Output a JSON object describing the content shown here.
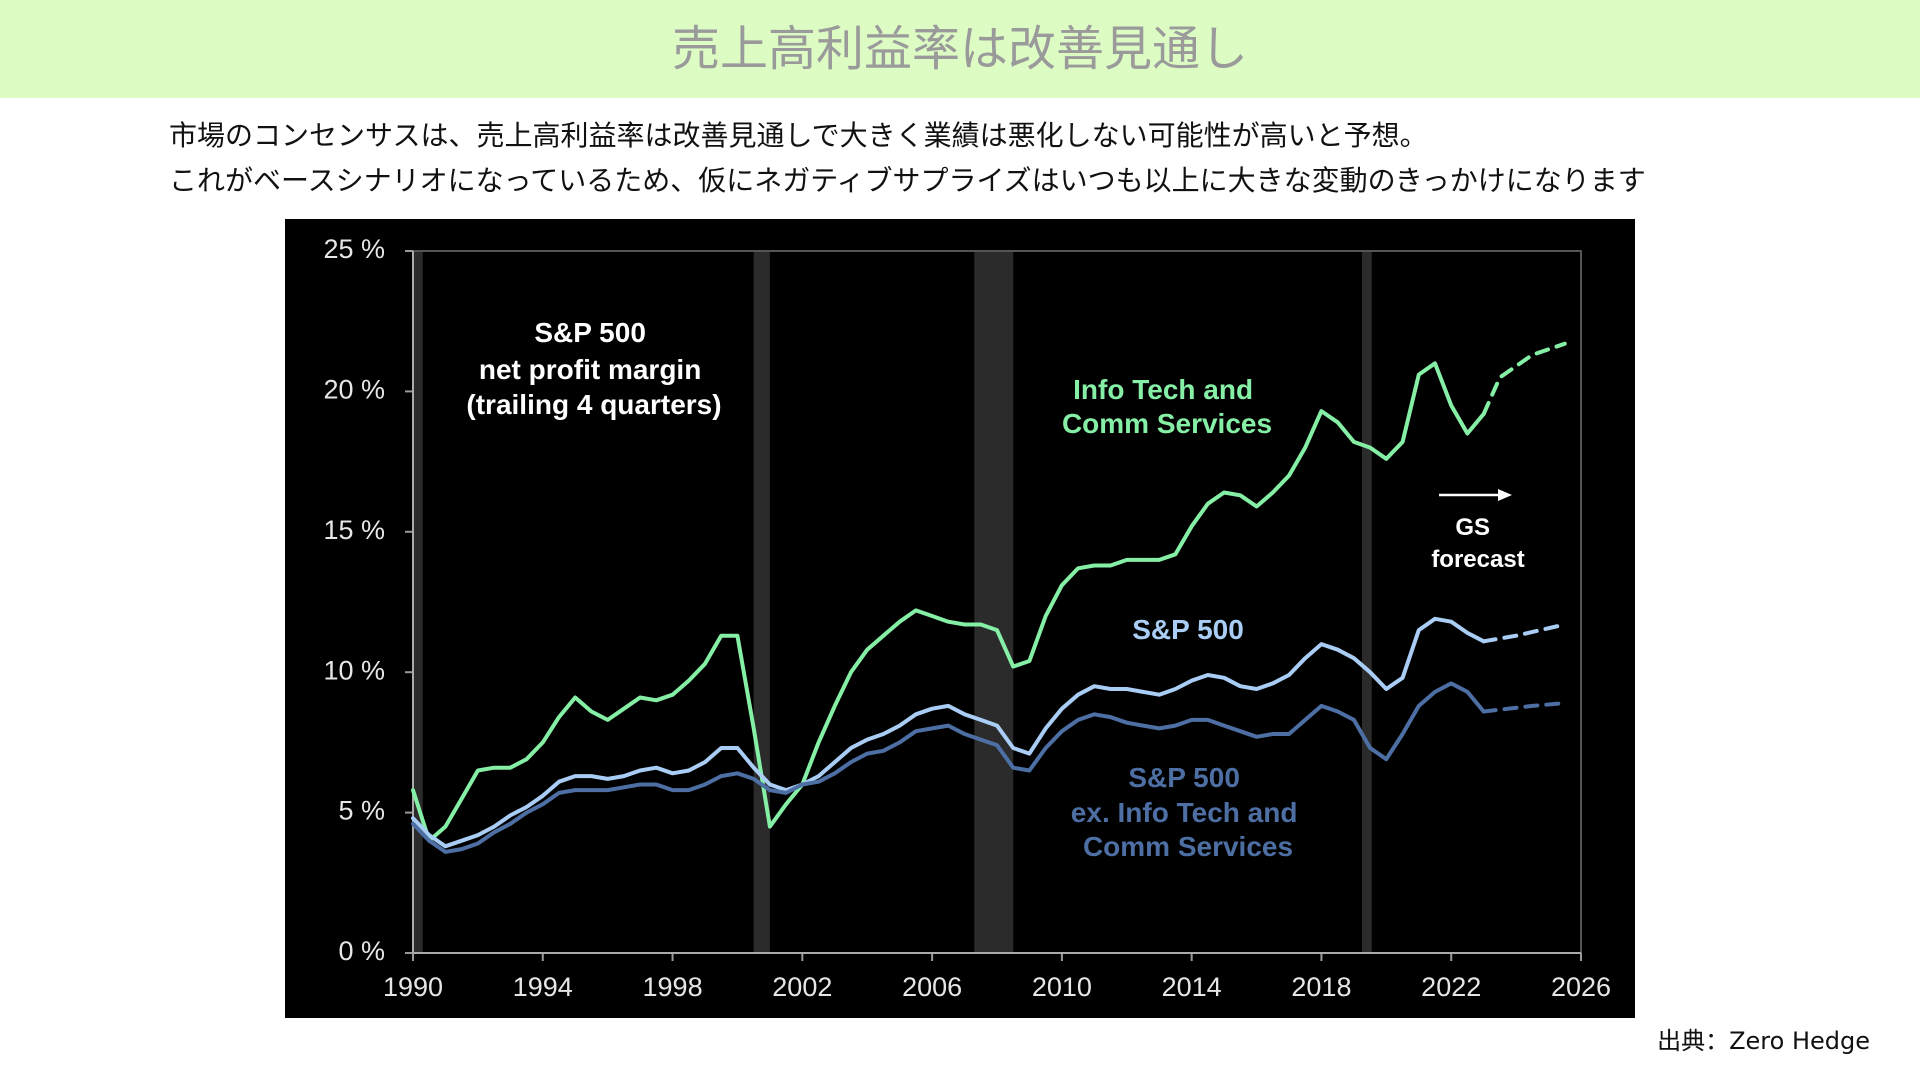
{
  "header": {
    "title": "売上高利益率は改善見通し"
  },
  "description": [
    "市場のコンセンサスは、売上高利益率は改善見通しで大きく業績は悪化しない可能性が高いと予想。",
    "これがベースシナリオになっているため、仮にネガティブサプライズはいつも以上に大きな変動のきっかけになります"
  ],
  "source": "出典：Zero Hedge",
  "chart_data": {
    "type": "line",
    "title": [
      "S&P 500",
      "net profit margin",
      "(trailing 4 quarters)"
    ],
    "annotation": [
      "GS",
      "forecast"
    ],
    "xlim": [
      1990,
      2026
    ],
    "xticks": [
      1990,
      1994,
      1998,
      2002,
      2006,
      2010,
      2014,
      2018,
      2022,
      2026
    ],
    "ylim": [
      0,
      25
    ],
    "yticks": [
      {
        "value": 0,
        "label": "0 %"
      },
      {
        "value": 5,
        "label": "5 %"
      },
      {
        "value": 10,
        "label": "10 %"
      },
      {
        "value": 15,
        "label": "15 %"
      },
      {
        "value": 20,
        "label": "20 %"
      },
      {
        "value": 25,
        "label": "25 %"
      }
    ],
    "recessions": [
      [
        1990.0,
        1990.3
      ],
      [
        2000.5,
        2001.0
      ],
      [
        2007.3,
        2008.5
      ],
      [
        2019.25,
        2019.55
      ]
    ],
    "x": [
      1990,
      1990.5,
      1991,
      1991.5,
      1992,
      1992.5,
      1993,
      1993.5,
      1994,
      1994.5,
      1995,
      1995.5,
      1996,
      1996.5,
      1997,
      1997.5,
      1998,
      1998.5,
      1999,
      1999.5,
      2000,
      2000.5,
      2001,
      2001.5,
      2002,
      2002.5,
      2003,
      2003.5,
      2004,
      2004.5,
      2005,
      2005.5,
      2006,
      2006.5,
      2007,
      2007.5,
      2008,
      2008.5,
      2009,
      2009.5,
      2010,
      2010.5,
      2011,
      2011.5,
      2012,
      2012.5,
      2013,
      2013.5,
      2014,
      2014.5,
      2015,
      2015.5,
      2016,
      2016.5,
      2017,
      2017.5,
      2018,
      2018.5,
      2019,
      2019.5,
      2020,
      2020.5,
      2021,
      2021.5,
      2022,
      2022.5,
      2023
    ],
    "series": [
      {
        "name": [
          "Info Tech and",
          "Comm Services"
        ],
        "color": "#86efa6",
        "values": [
          5.8,
          4.0,
          4.5,
          5.5,
          6.5,
          6.6,
          6.6,
          6.9,
          7.5,
          8.4,
          9.1,
          8.6,
          8.3,
          8.7,
          9.1,
          9.0,
          9.2,
          9.7,
          10.3,
          11.3,
          11.3,
          8.0,
          4.5,
          5.3,
          6.0,
          7.5,
          8.8,
          10.0,
          10.8,
          11.3,
          11.8,
          12.2,
          12.0,
          11.8,
          11.7,
          11.7,
          11.5,
          10.2,
          10.4,
          12.0,
          13.1,
          13.7,
          13.8,
          13.8,
          14.0,
          14.0,
          14.0,
          14.2,
          15.2,
          16.0,
          16.4,
          16.3,
          15.9,
          16.4,
          17.0,
          18.0,
          19.3,
          18.9,
          18.2,
          18.0,
          17.6,
          18.2,
          20.6,
          21.0,
          19.5,
          18.5,
          19.2
        ],
        "forecast": {
          "x": [
            2023,
            2023.5,
            2024.5,
            2025.5
          ],
          "values": [
            19.2,
            20.5,
            21.3,
            21.7
          ]
        }
      },
      {
        "name": [
          "S&P 500"
        ],
        "color": "#a9cdf5",
        "values": [
          4.8,
          4.2,
          3.8,
          4.0,
          4.2,
          4.5,
          4.9,
          5.2,
          5.6,
          6.1,
          6.3,
          6.3,
          6.2,
          6.3,
          6.5,
          6.6,
          6.4,
          6.5,
          6.8,
          7.3,
          7.3,
          6.6,
          6.0,
          5.8,
          6.0,
          6.3,
          6.8,
          7.3,
          7.6,
          7.8,
          8.1,
          8.5,
          8.7,
          8.8,
          8.5,
          8.3,
          8.1,
          7.3,
          7.1,
          8.0,
          8.7,
          9.2,
          9.5,
          9.4,
          9.4,
          9.3,
          9.2,
          9.4,
          9.7,
          9.9,
          9.8,
          9.5,
          9.4,
          9.6,
          9.9,
          10.5,
          11.0,
          10.8,
          10.5,
          10.0,
          9.4,
          9.8,
          11.5,
          11.9,
          11.8,
          11.4,
          11.1
        ],
        "forecast": {
          "x": [
            2023,
            2024,
            2025.5
          ],
          "values": [
            11.1,
            11.3,
            11.7
          ]
        }
      },
      {
        "name": [
          "S&P 500",
          "ex. Info Tech and",
          "Comm Services"
        ],
        "color": "#4d6fa3",
        "values": [
          4.6,
          4.0,
          3.6,
          3.7,
          3.9,
          4.3,
          4.6,
          5.0,
          5.3,
          5.7,
          5.8,
          5.8,
          5.8,
          5.9,
          6.0,
          6.0,
          5.8,
          5.8,
          6.0,
          6.3,
          6.4,
          6.2,
          5.8,
          5.7,
          6.0,
          6.1,
          6.4,
          6.8,
          7.1,
          7.2,
          7.5,
          7.9,
          8.0,
          8.1,
          7.8,
          7.6,
          7.4,
          6.6,
          6.5,
          7.3,
          7.9,
          8.3,
          8.5,
          8.4,
          8.2,
          8.1,
          8.0,
          8.1,
          8.3,
          8.3,
          8.1,
          7.9,
          7.7,
          7.8,
          7.8,
          8.3,
          8.8,
          8.6,
          8.3,
          7.3,
          6.9,
          7.8,
          8.8,
          9.3,
          9.6,
          9.3,
          8.6
        ],
        "forecast": {
          "x": [
            2023,
            2024.5,
            2025.5
          ],
          "values": [
            8.6,
            8.8,
            8.9
          ]
        }
      }
    ]
  }
}
